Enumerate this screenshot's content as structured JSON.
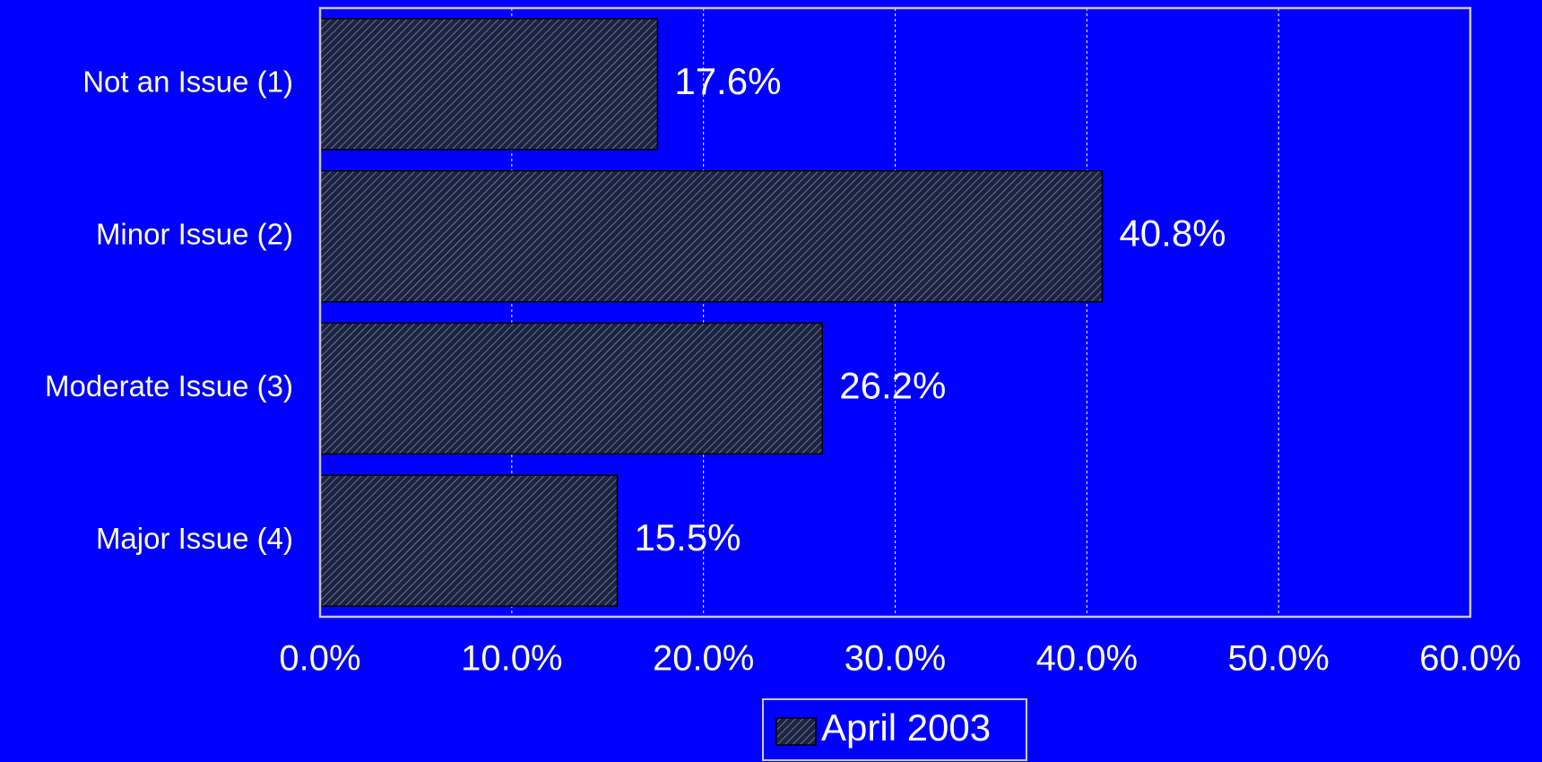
{
  "chart_data": {
    "type": "bar",
    "orientation": "horizontal",
    "categories": [
      "Not an Issue (1)",
      "Minor Issue (2)",
      "Moderate Issue (3)",
      "Major Issue (4)"
    ],
    "series": [
      {
        "name": "April 2003",
        "color": "#1c2340",
        "values": [
          17.6,
          40.8,
          26.2,
          15.5
        ],
        "value_labels": [
          "17.6%",
          "40.8%",
          "26.2%",
          "15.5%"
        ]
      }
    ],
    "xlim": [
      0,
      60
    ],
    "xticks": [
      {
        "value": 0,
        "label": "0.0%"
      },
      {
        "value": 10,
        "label": "10.0%"
      },
      {
        "value": 20,
        "label": "20.0%"
      },
      {
        "value": 30,
        "label": "30.0%"
      },
      {
        "value": 40,
        "label": "40.0%"
      },
      {
        "value": 50,
        "label": "50.0%"
      },
      {
        "value": 60,
        "label": "60.0%"
      }
    ],
    "grid": true,
    "legend": "bottom"
  }
}
